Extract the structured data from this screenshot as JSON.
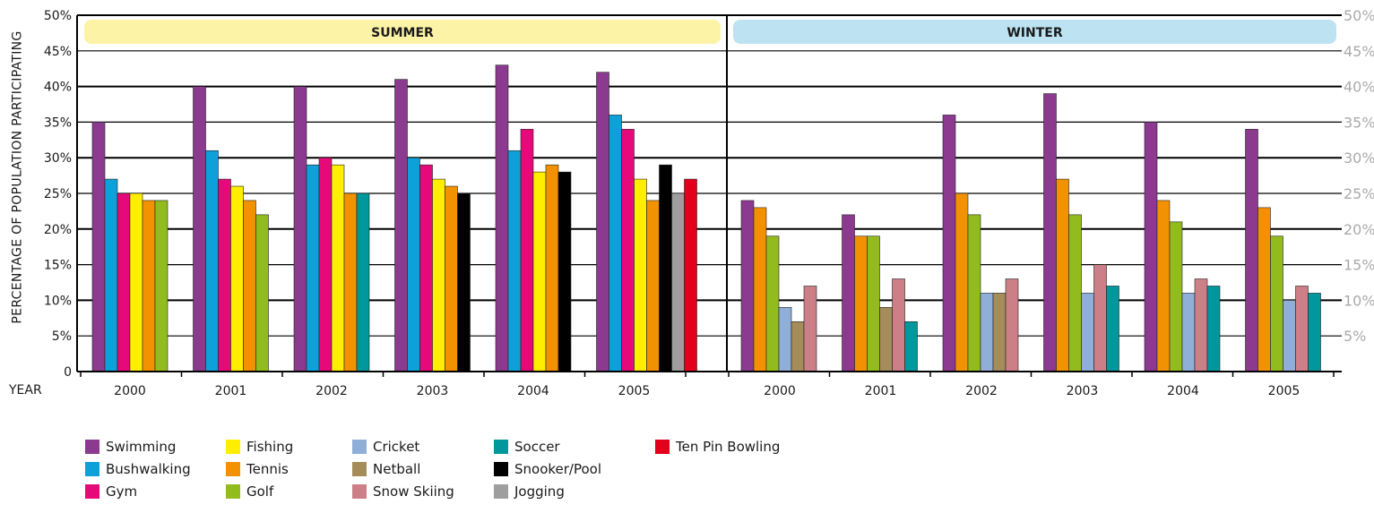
{
  "chart_data": {
    "type": "bar",
    "ylabel": "PERCENTAGE OF POPULATION PARTICIPATING",
    "xlabel": "YEAR",
    "ylim": [
      0,
      50
    ],
    "y_ticks_left": [
      "0",
      "5%",
      "10%",
      "15%",
      "20%",
      "25%",
      "30%",
      "35%",
      "40%",
      "45%",
      "50%"
    ],
    "y_ticks_right": [
      "5%",
      "10%",
      "15%",
      "20%",
      "25%",
      "30%",
      "35%",
      "40%",
      "45%",
      "50%"
    ],
    "grid": true,
    "legend_position": "bottom",
    "activities": [
      {
        "name": "Swimming",
        "color": "#8b3a8f"
      },
      {
        "name": "Bushwalking",
        "color": "#0ea0d8"
      },
      {
        "name": "Gym",
        "color": "#e6097a"
      },
      {
        "name": "Fishing",
        "color": "#ffee00"
      },
      {
        "name": "Tennis",
        "color": "#f39200"
      },
      {
        "name": "Golf",
        "color": "#92bc1e"
      },
      {
        "name": "Cricket",
        "color": "#8fafd8"
      },
      {
        "name": "Netball",
        "color": "#a48d5a"
      },
      {
        "name": "Snow Skiing",
        "color": "#cc7f86"
      },
      {
        "name": "Soccer",
        "color": "#00979d"
      },
      {
        "name": "Snooker/Pool",
        "color": "#000000"
      },
      {
        "name": "Jogging",
        "color": "#9e9e9e"
      },
      {
        "name": "Ten Pin Bowling",
        "color": "#e2001a"
      }
    ],
    "panels": [
      {
        "label": "SUMMER",
        "banner_color": "#fdf3a6",
        "groups": [
          {
            "year": "2000",
            "bars": [
              [
                "Swimming",
                35
              ],
              [
                "Bushwalking",
                27
              ],
              [
                "Gym",
                25
              ],
              [
                "Fishing",
                25
              ],
              [
                "Tennis",
                24
              ],
              [
                "Golf",
                24
              ]
            ]
          },
          {
            "year": "2001",
            "bars": [
              [
                "Swimming",
                40
              ],
              [
                "Bushwalking",
                31
              ],
              [
                "Gym",
                27
              ],
              [
                "Fishing",
                26
              ],
              [
                "Tennis",
                24
              ],
              [
                "Golf",
                22
              ]
            ]
          },
          {
            "year": "2002",
            "bars": [
              [
                "Swimming",
                40
              ],
              [
                "Bushwalking",
                29
              ],
              [
                "Gym",
                30
              ],
              [
                "Fishing",
                29
              ],
              [
                "Tennis",
                25
              ],
              [
                "Soccer",
                25
              ]
            ]
          },
          {
            "year": "2003",
            "bars": [
              [
                "Swimming",
                41
              ],
              [
                "Bushwalking",
                30
              ],
              [
                "Gym",
                29
              ],
              [
                "Fishing",
                27
              ],
              [
                "Tennis",
                26
              ],
              [
                "Snooker/Pool",
                25
              ]
            ]
          },
          {
            "year": "2004",
            "bars": [
              [
                "Swimming",
                43
              ],
              [
                "Bushwalking",
                31
              ],
              [
                "Gym",
                34
              ],
              [
                "Fishing",
                28
              ],
              [
                "Tennis",
                29
              ],
              [
                "Snooker/Pool",
                28
              ]
            ]
          },
          {
            "year": "2005",
            "bars": [
              [
                "Swimming",
                42
              ],
              [
                "Bushwalking",
                36
              ],
              [
                "Gym",
                34
              ],
              [
                "Fishing",
                27
              ],
              [
                "Tennis",
                24
              ],
              [
                "Snooker/Pool",
                29
              ],
              [
                "Jogging",
                25
              ],
              [
                "Ten Pin Bowling",
                27
              ]
            ]
          }
        ]
      },
      {
        "label": "WINTER",
        "banner_color": "#bde3f3",
        "groups": [
          {
            "year": "2000",
            "bars": [
              [
                "Swimming",
                24
              ],
              [
                "Tennis",
                23
              ],
              [
                "Golf",
                19
              ],
              [
                "Cricket",
                9
              ],
              [
                "Netball",
                7
              ],
              [
                "Snow Skiing",
                12
              ]
            ]
          },
          {
            "year": "2001",
            "bars": [
              [
                "Swimming",
                22
              ],
              [
                "Tennis",
                19
              ],
              [
                "Golf",
                19
              ],
              [
                "Netball",
                9
              ],
              [
                "Snow Skiing",
                13
              ],
              [
                "Soccer",
                7
              ]
            ]
          },
          {
            "year": "2002",
            "bars": [
              [
                "Swimming",
                36
              ],
              [
                "Tennis",
                25
              ],
              [
                "Golf",
                22
              ],
              [
                "Cricket",
                11
              ],
              [
                "Netball",
                11
              ],
              [
                "Snow Skiing",
                13
              ]
            ]
          },
          {
            "year": "2003",
            "bars": [
              [
                "Swimming",
                39
              ],
              [
                "Tennis",
                27
              ],
              [
                "Golf",
                22
              ],
              [
                "Cricket",
                11
              ],
              [
                "Snow Skiing",
                15
              ],
              [
                "Soccer",
                12
              ]
            ]
          },
          {
            "year": "2004",
            "bars": [
              [
                "Swimming",
                35
              ],
              [
                "Tennis",
                24
              ],
              [
                "Golf",
                21
              ],
              [
                "Cricket",
                11
              ],
              [
                "Snow Skiing",
                13
              ],
              [
                "Soccer",
                12
              ]
            ]
          },
          {
            "year": "2005",
            "bars": [
              [
                "Swimming",
                34
              ],
              [
                "Tennis",
                23
              ],
              [
                "Golf",
                19
              ],
              [
                "Cricket",
                10
              ],
              [
                "Snow Skiing",
                12
              ],
              [
                "Soccer",
                11
              ]
            ]
          }
        ]
      }
    ]
  }
}
